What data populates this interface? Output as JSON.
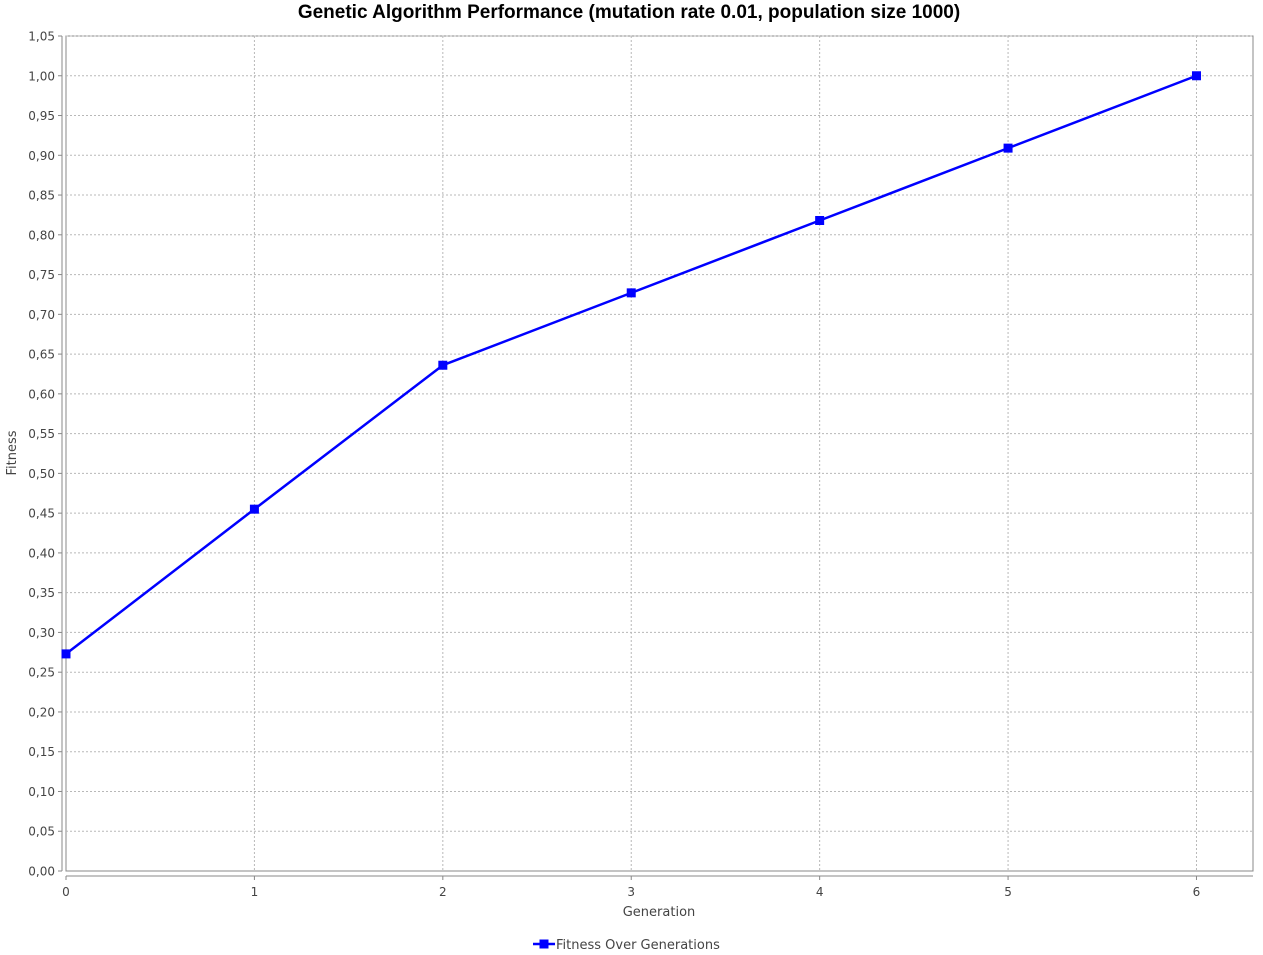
{
  "chart_data": {
    "type": "line",
    "title": "Genetic Algorithm Performance (mutation rate 0.01, population size 1000)",
    "xlabel": "Generation",
    "ylabel": "Fitness",
    "x": [
      0,
      1,
      2,
      3,
      4,
      5,
      6
    ],
    "series": [
      {
        "name": "Fitness Over Generations",
        "values": [
          0.273,
          0.455,
          0.636,
          0.727,
          0.818,
          0.909,
          1.0
        ],
        "color": "#0000ff",
        "marker": "square"
      }
    ],
    "xlim": [
      0,
      6.3
    ],
    "ylim": [
      0,
      1.05
    ],
    "x_ticks": [
      "0",
      "1",
      "2",
      "3",
      "4",
      "5",
      "6"
    ],
    "y_ticks": [
      "0,00",
      "0,05",
      "0,10",
      "0,15",
      "0,20",
      "0,25",
      "0,30",
      "0,35",
      "0,40",
      "0,45",
      "0,50",
      "0,55",
      "0,60",
      "0,65",
      "0,70",
      "0,75",
      "0,80",
      "0,85",
      "0,90",
      "0,95",
      "1,00",
      "1,05"
    ],
    "grid": true,
    "legend_position": "bottom-center"
  }
}
